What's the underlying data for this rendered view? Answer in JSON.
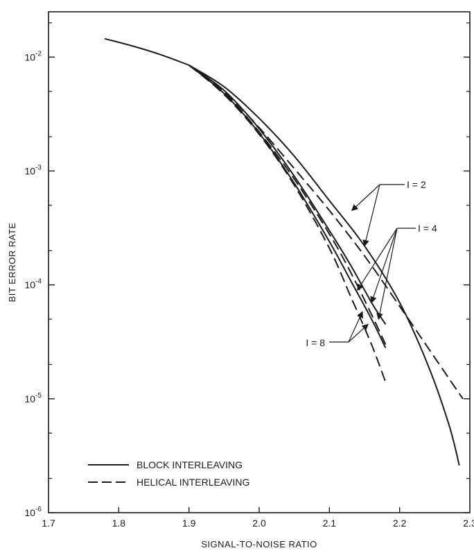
{
  "chart_data": {
    "type": "line",
    "title": "",
    "xlabel": "SIGNAL-TO-NOISE RATIO",
    "ylabel": "BIT ERROR RATE",
    "xlim": [
      1.7,
      2.3
    ],
    "ylim": [
      1e-06,
      0.025
    ],
    "yscale": "log",
    "grid": false,
    "legend_position": "bottom-left",
    "x_ticks": [
      "1.7",
      "1.8",
      "1.9",
      "2.0",
      "2.1",
      "2.2",
      "2.3"
    ],
    "x_tick_values": [
      1.7,
      1.8,
      1.9,
      2.0,
      2.1,
      2.2,
      2.3
    ],
    "y_ticks": [
      {
        "value": 0.01,
        "base": "10",
        "exp": "-2"
      },
      {
        "value": 0.001,
        "base": "10",
        "exp": "-3"
      },
      {
        "value": 0.0001,
        "base": "10",
        "exp": "-4"
      },
      {
        "value": 1e-05,
        "base": "10",
        "exp": "-5"
      },
      {
        "value": 1e-06,
        "base": "10",
        "exp": "-6"
      }
    ],
    "legend": [
      {
        "label": "BLOCK INTERLEAVING",
        "style": "solid"
      },
      {
        "label": "HELICAL INTERLEAVING",
        "style": "dashed"
      }
    ],
    "series": [
      {
        "group": "common",
        "style": "solid",
        "x": [
          1.78,
          1.82,
          1.86,
          1.9
        ],
        "y": [
          0.0145,
          0.0125,
          0.0105,
          0.0085
        ]
      },
      {
        "group": "I = 2",
        "style": "solid",
        "x": [
          1.9,
          1.95,
          2.0,
          2.05,
          2.1,
          2.15,
          2.2,
          2.24,
          2.27,
          2.285
        ],
        "y": [
          0.0085,
          0.0055,
          0.0029,
          0.00135,
          0.00055,
          0.00022,
          7e-05,
          2e-05,
          6e-06,
          2.6e-06
        ]
      },
      {
        "group": "I = 2",
        "style": "dashed",
        "x": [
          1.9,
          1.95,
          2.0,
          2.05,
          2.1,
          2.15,
          2.2,
          2.25,
          2.29
        ],
        "y": [
          0.0085,
          0.005,
          0.0024,
          0.00105,
          0.00045,
          0.00018,
          6.5e-05,
          2.3e-05,
          1e-05
        ]
      },
      {
        "group": "I = 4",
        "style": "solid",
        "x": [
          1.9,
          1.95,
          2.0,
          2.05,
          2.1,
          2.13,
          2.16,
          2.18
        ],
        "y": [
          0.0085,
          0.0051,
          0.00235,
          0.0009,
          0.0003,
          0.00015,
          7e-05,
          4.5e-05
        ]
      },
      {
        "group": "I = 4",
        "style": "dashed",
        "x": [
          1.9,
          1.95,
          2.0,
          2.05,
          2.1,
          2.13,
          2.16,
          2.18
        ],
        "y": [
          0.0085,
          0.0049,
          0.0022,
          0.00085,
          0.00028,
          0.00013,
          5.5e-05,
          3e-05
        ]
      },
      {
        "group": "I = 8",
        "style": "solid",
        "x": [
          1.9,
          1.95,
          2.0,
          2.05,
          2.1,
          2.13,
          2.16,
          2.18
        ],
        "y": [
          0.0085,
          0.0048,
          0.00215,
          0.00078,
          0.00024,
          0.00011,
          5e-05,
          2.8e-05
        ]
      },
      {
        "group": "I = 8",
        "style": "dashed",
        "x": [
          1.9,
          1.95,
          2.0,
          2.05,
          2.1,
          2.13,
          2.16,
          2.18
        ],
        "y": [
          0.0085,
          0.0047,
          0.0021,
          0.00075,
          0.00021,
          8e-05,
          3e-05,
          1.4e-05
        ]
      }
    ],
    "annotations": [
      {
        "text": "I = 2",
        "points_to": [
          [
            2.132,
            0.00045
          ],
          [
            2.15,
            0.00022
          ]
        ]
      },
      {
        "text": "I = 4",
        "points_to": [
          [
            2.14,
            9e-05
          ],
          [
            2.16,
            7e-05
          ],
          [
            2.17,
            5e-05
          ]
        ]
      },
      {
        "text": "I = 8",
        "points_to": [
          [
            2.147,
            5.8e-05
          ],
          [
            2.155,
            4.5e-05
          ]
        ]
      }
    ]
  }
}
